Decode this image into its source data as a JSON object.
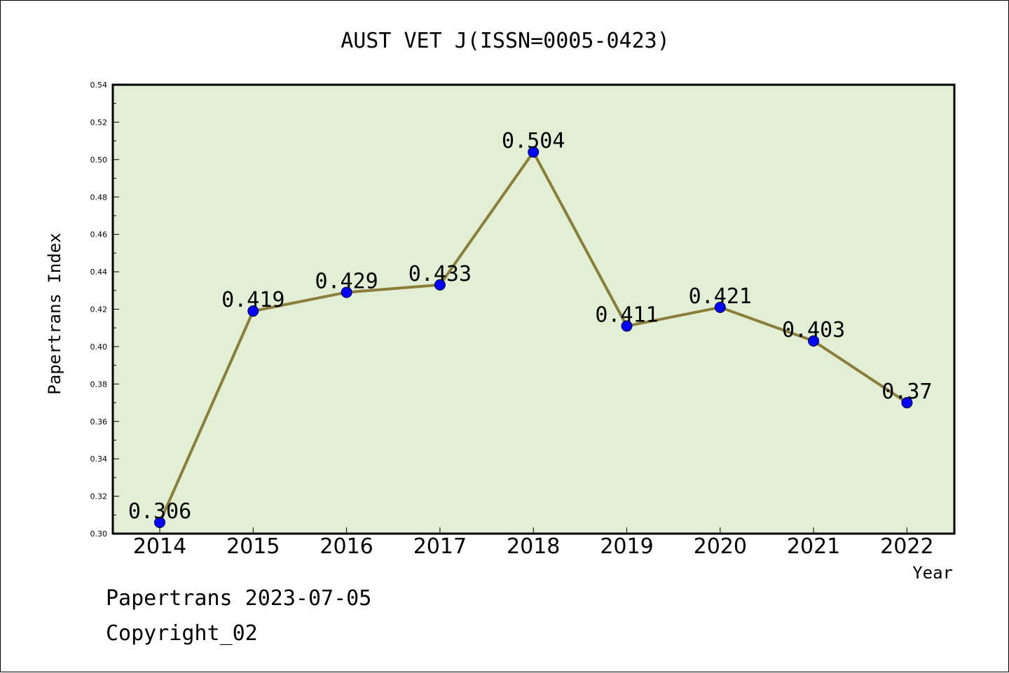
{
  "chart_data": {
    "type": "line",
    "title": "AUST VET J(ISSN=0005-0423)",
    "xlabel": "Year",
    "ylabel": "Papertrans Index",
    "ylim": [
      0.3,
      0.54
    ],
    "yticks": [
      "0.30",
      "0.32",
      "0.34",
      "0.36",
      "0.38",
      "0.40",
      "0.42",
      "0.44",
      "0.46",
      "0.48",
      "0.50",
      "0.52",
      "0.54"
    ],
    "categories": [
      "2014",
      "2015",
      "2016",
      "2017",
      "2018",
      "2019",
      "2020",
      "2021",
      "2022"
    ],
    "series": [
      {
        "values": [
          0.306,
          0.419,
          0.429,
          0.433,
          0.504,
          0.411,
          0.421,
          0.403,
          0.37
        ],
        "labels": [
          "0.306",
          "0.419",
          "0.429",
          "0.433",
          "0.504",
          "0.411",
          "0.421",
          "0.403",
          "0.37"
        ]
      }
    ],
    "grid": false,
    "colors": {
      "plot_bg": "#e2efd5",
      "line": "#8b7d3a",
      "marker": "#0000ff"
    }
  },
  "footer": {
    "date_line": "Papertrans 2023-07-05",
    "copyright": "Copyright_02"
  }
}
